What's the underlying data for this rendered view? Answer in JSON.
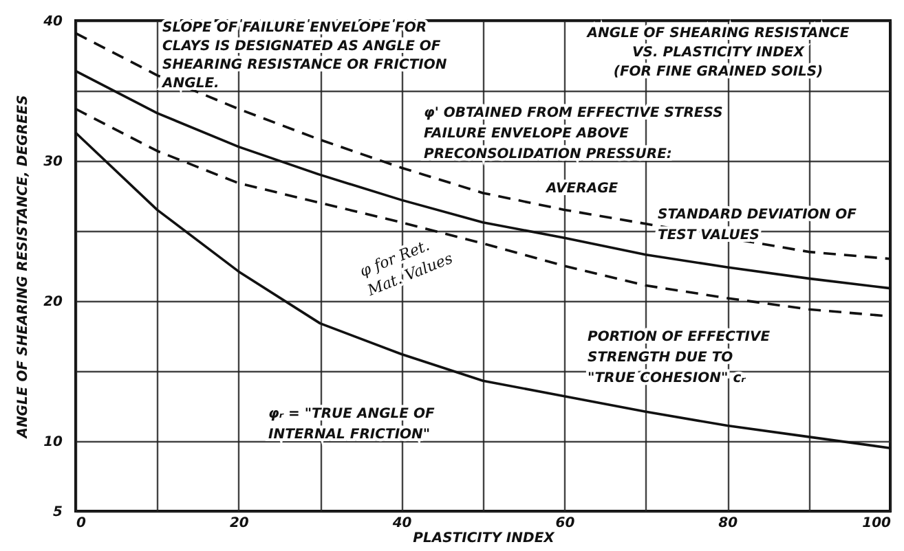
{
  "chart_data": {
    "type": "line",
    "title": "ANGLE OF SHEARING RESISTANCE\nVS. PLASTICITY INDEX\n(FOR FINE GRAINED SOILS)",
    "xlabel": "PLASTICITY INDEX",
    "ylabel": "ANGLE OF SHEARING RESISTANCE, DEGREES",
    "x": [
      0,
      10,
      20,
      30,
      40,
      50,
      60,
      70,
      80,
      90,
      100
    ],
    "series": [
      {
        "color": "#111111",
        "line_style": "dashed",
        "values": [
          39.1,
          36.1,
          33.7,
          31.5,
          29.5,
          27.7,
          26.5,
          25.5,
          24.5,
          23.5,
          23.0
        ]
      },
      {
        "color": "#111111",
        "line_style": "solid",
        "values": [
          36.4,
          33.4,
          31.0,
          29.0,
          27.2,
          25.6,
          24.5,
          23.3,
          22.4,
          21.6,
          20.9
        ]
      },
      {
        "color": "#111111",
        "line_style": "dashed",
        "values": [
          33.7,
          30.7,
          28.4,
          27.0,
          25.6,
          24.1,
          22.5,
          21.1,
          20.2,
          19.4,
          18.9
        ]
      },
      {
        "color": "#111111",
        "line_style": "solid",
        "values": [
          32.0,
          26.5,
          22.1,
          18.4,
          16.2,
          14.3,
          13.2,
          12.1,
          11.1,
          10.3,
          9.5
        ]
      }
    ],
    "xlim": [
      0,
      100
    ],
    "xticks": [
      0,
      {
        "value": 10,
        "label": null
      },
      20,
      {
        "value": 30,
        "label": null
      },
      40,
      {
        "value": 50,
        "label": null
      },
      60,
      {
        "value": 70,
        "label": null
      },
      80,
      {
        "value": 90,
        "label": null
      },
      100
    ],
    "ylim": [
      5,
      40
    ],
    "yticks": [
      5,
      10,
      {
        "value": 15,
        "label": null
      },
      20,
      {
        "value": 25,
        "label": null
      },
      30,
      {
        "value": 35,
        "label": null
      },
      40
    ],
    "grid": true,
    "marker": "none",
    "annotations": [
      "SLOPE OF FAILURE ENVELOPE FOR\nCLAYS IS DESIGNATED AS ANGLE OF\nSHEARING RESISTANCE OR FRICTION\nANGLE.",
      "φ' OBTAINED FROM EFFECTIVE STRESS\nFAILURE ENVELOPE ABOVE\nPRECONSOLIDATION PRESSURE:",
      "AVERAGE",
      "STANDARD DEVIATION OF\nTEST VALUES",
      "PORTION OF EFFECTIVE\nSTRENGTH DUE TO\n\"TRUE COHESION\" cᵣ",
      "φᵣ = \"TRUE ANGLE OF\nINTERNAL FRICTION\"",
      "φ for Ret.\nMat. Values"
    ]
  }
}
